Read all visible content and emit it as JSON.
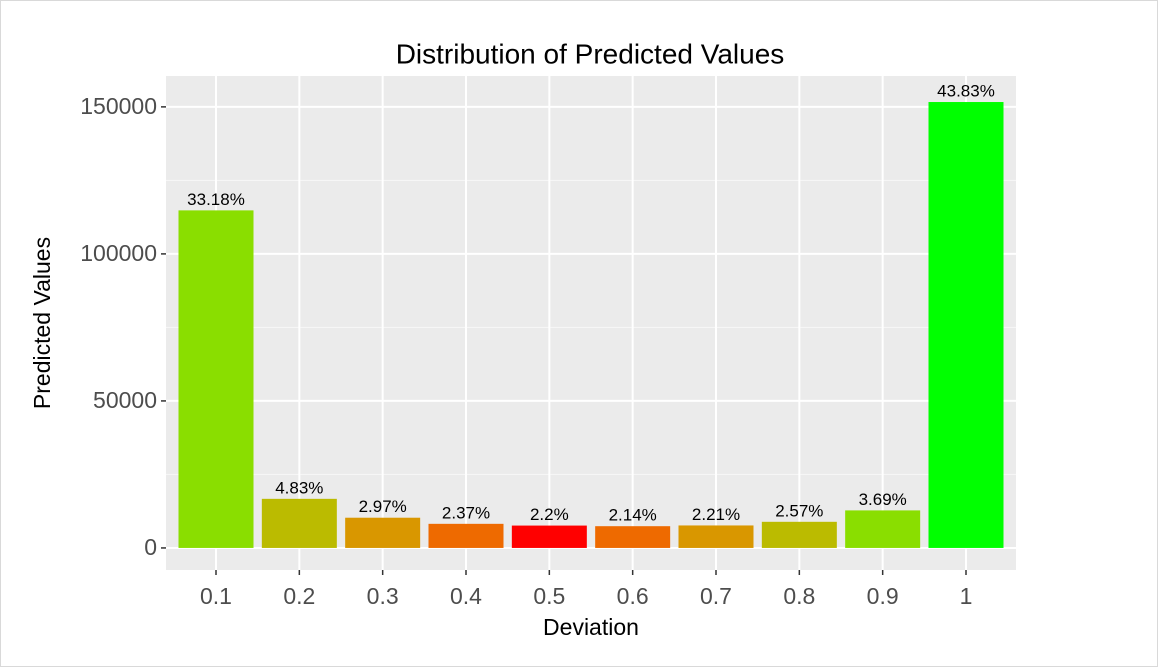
{
  "chart_data": {
    "type": "bar",
    "title": "Distribution of Predicted Values",
    "x_label": "Deviation",
    "y_label": "Predicted Values",
    "categories": [
      "0.1",
      "0.2",
      "0.3",
      "0.4",
      "0.5",
      "0.6",
      "0.7",
      "0.8",
      "0.9",
      "1"
    ],
    "values": [
      114800,
      16700,
      10280,
      8200,
      7610,
      7400,
      7650,
      8890,
      12770,
      151650
    ],
    "bar_labels": [
      "33.18%",
      "4.83%",
      "2.97%",
      "2.37%",
      "2.2%",
      "2.14%",
      "2.21%",
      "2.57%",
      "3.69%",
      "43.83%"
    ],
    "colors": [
      "#8ade00",
      "#bbbb00",
      "#d99700",
      "#ee6a00",
      "#ff0000",
      "#ee6a00",
      "#d99700",
      "#bbbb00",
      "#8ade00",
      "#00ff00"
    ],
    "ylim": [
      -7500,
      160500
    ],
    "yticks": [
      0,
      50000,
      100000,
      150000
    ],
    "yminorticks": [
      25000,
      75000,
      125000
    ],
    "grid": true
  }
}
